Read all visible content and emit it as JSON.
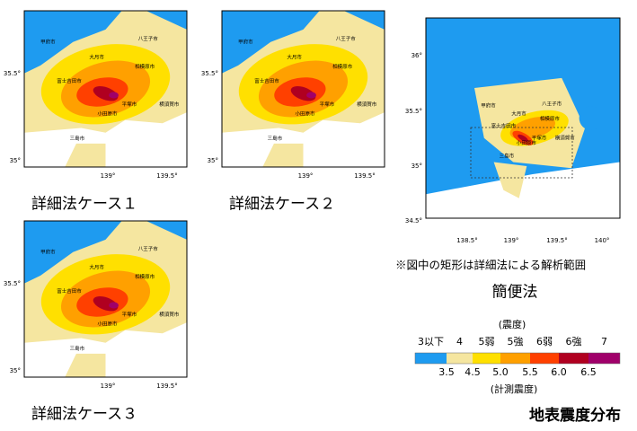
{
  "maps": [
    {
      "caption": "詳細法ケース１",
      "yticks": [
        "35.5°",
        "35°"
      ],
      "xticks": [
        "139°",
        "139.5°"
      ],
      "places": [
        "甲府市",
        "大月市",
        "八王子市",
        "相模原市",
        "富士吉田市",
        "平塚市",
        "小田原市",
        "横須賀市",
        "三島市"
      ]
    },
    {
      "caption": "詳細法ケース２",
      "yticks": [
        "35.5°",
        "35°"
      ],
      "xticks": [
        "139°",
        "139.5°"
      ],
      "places": [
        "甲府市",
        "大月市",
        "八王子市",
        "相模原市",
        "富士吉田市",
        "平塚市",
        "小田原市",
        "横須賀市",
        "三島市"
      ]
    },
    {
      "caption": "詳細法ケース３",
      "yticks": [
        "35.5°",
        "35°"
      ],
      "xticks": [
        "139°",
        "139.5°"
      ],
      "places": [
        "甲府市",
        "大月市",
        "八王子市",
        "相模原市",
        "富士吉田市",
        "平塚市",
        "小田原市",
        "横須賀市",
        "三島市"
      ]
    }
  ],
  "overview": {
    "caption": "簡便法",
    "note": "※図中の矩形は詳細法による解析範囲",
    "yticks": [
      "36°",
      "35.5°",
      "35°",
      "34.5°"
    ],
    "xticks": [
      "138.5°",
      "139°",
      "139.5°",
      "140°"
    ],
    "places": [
      "甲府市",
      "大月市",
      "八王子市",
      "相模原市",
      "富士吉田市",
      "平塚市",
      "小田原市",
      "横須賀市",
      "三島市"
    ]
  },
  "legend": {
    "title": "(震度)",
    "classes": [
      {
        "label": "3以下",
        "color": "#1e9bf0"
      },
      {
        "label": "4",
        "color": "#f5e6a0"
      },
      {
        "label": "5弱",
        "color": "#ffe000"
      },
      {
        "label": "5強",
        "color": "#ffa000"
      },
      {
        "label": "6弱",
        "color": "#ff4000"
      },
      {
        "label": "6強",
        "color": "#b00020"
      },
      {
        "label": "7",
        "color": "#a0006a"
      }
    ],
    "boundaries": [
      "3.5",
      "4.5",
      "5.0",
      "5.5",
      "6.0",
      "6.5"
    ],
    "axis_label": "(計測震度)"
  },
  "footer": "地表震度分布"
}
